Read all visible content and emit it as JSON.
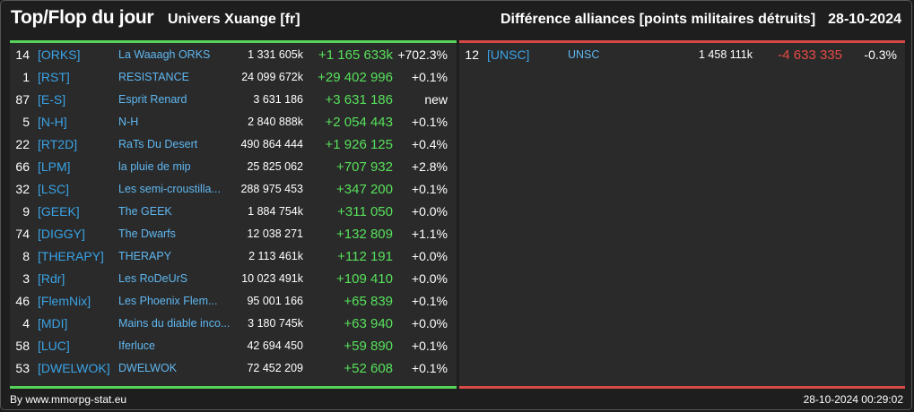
{
  "header": {
    "title": "Top/Flop du jour",
    "universe": "Univers Xuange [fr]",
    "subtitle": "Différence alliances [points militaires détruits]",
    "date": "28-10-2024"
  },
  "colors": {
    "top_accent": "#56d45a",
    "flop_accent": "#d64a46",
    "tag_color": "#3aa3e6",
    "positive": "#57e05b",
    "negative": "#e64a45"
  },
  "top": [
    {
      "rank": "14",
      "tag": "[ORKS]",
      "name": "La Waaagh ORKS",
      "points": "1 331 605k",
      "diff": "+1 165 633k",
      "pct": "+702.3%"
    },
    {
      "rank": "1",
      "tag": "[RST]",
      "name": "RESISTANCE",
      "points": "24 099 672k",
      "diff": "+29 402 996",
      "pct": "+0.1%"
    },
    {
      "rank": "87",
      "tag": "[E-S]",
      "name": "Esprit Renard",
      "points": "3 631 186",
      "diff": "+3 631 186",
      "pct": "new"
    },
    {
      "rank": "5",
      "tag": "[N-H]",
      "name": "N-H",
      "points": "2 840 888k",
      "diff": "+2 054 443",
      "pct": "+0.1%"
    },
    {
      "rank": "22",
      "tag": "[RT2D]",
      "name": "RaTs Du Desert",
      "points": "490 864 444",
      "diff": "+1 926 125",
      "pct": "+0.4%"
    },
    {
      "rank": "66",
      "tag": "[LPM]",
      "name": "la pluie de mip",
      "points": "25 825 062",
      "diff": "+707 932",
      "pct": "+2.8%"
    },
    {
      "rank": "32",
      "tag": "[LSC]",
      "name": "Les semi-croustilla...",
      "points": "288 975 453",
      "diff": "+347 200",
      "pct": "+0.1%"
    },
    {
      "rank": "9",
      "tag": "[GEEK]",
      "name": "The GEEK",
      "points": "1 884 754k",
      "diff": "+311 050",
      "pct": "+0.0%"
    },
    {
      "rank": "74",
      "tag": "[DIGGY]",
      "name": "The Dwarfs",
      "points": "12 038 271",
      "diff": "+132 809",
      "pct": "+1.1%"
    },
    {
      "rank": "8",
      "tag": "[THERAPY]",
      "name": "THERAPY",
      "points": "2 113 461k",
      "diff": "+112 191",
      "pct": "+0.0%"
    },
    {
      "rank": "3",
      "tag": "[Rdr]",
      "name": "Les RoDeUrS",
      "points": "10 023 491k",
      "diff": "+109 410",
      "pct": "+0.0%"
    },
    {
      "rank": "46",
      "tag": "[FlemNix]",
      "name": "Les Phoenix Flem...",
      "points": "95 001 166",
      "diff": "+65 839",
      "pct": "+0.1%"
    },
    {
      "rank": "4",
      "tag": "[MDI]",
      "name": "Mains du diable inco...",
      "points": "3 180 745k",
      "diff": "+63 940",
      "pct": "+0.0%"
    },
    {
      "rank": "58",
      "tag": "[LUC]",
      "name": "Iferluce",
      "points": "42 694 450",
      "diff": "+59 890",
      "pct": "+0.1%"
    },
    {
      "rank": "53",
      "tag": "[DWELWOK]",
      "name": "DWELWOK",
      "points": "72 452 209",
      "diff": "+52 608",
      "pct": "+0.1%"
    }
  ],
  "flop": [
    {
      "rank": "12",
      "tag": "[UNSC]",
      "name": "UNSC",
      "points": "1 458 111k",
      "diff": "-4 633 335",
      "pct": "-0.3%"
    }
  ],
  "footer": {
    "credit": "By www.mmorpg-stat.eu",
    "timestamp": "28-10-2024 00:29:02"
  }
}
